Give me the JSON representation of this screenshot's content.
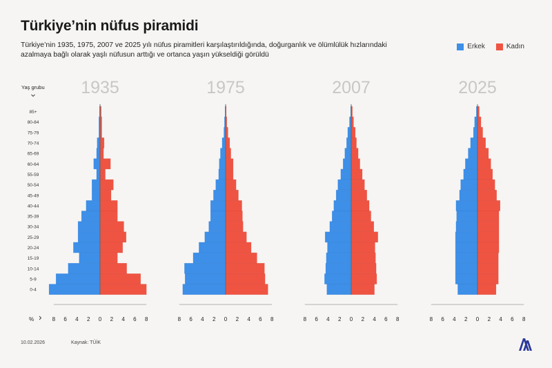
{
  "title": "Türkiye’nin nüfus piramidi",
  "subtitle": "Türkiye’nin 1935, 1975, 2007 ve 2025 yılı nüfus piramitleri karşılaştırıldığında, doğurganlık ve ölümlülük hızlarındaki azalmaya bağlı olarak yaşlı nüfusun arttığı ve ortanca yaşın yükseldiği görüldü",
  "footer": {
    "date": "10.02.2026",
    "source": "Kaynak: TÜİK"
  },
  "colors": {
    "male": "#3d8fe8",
    "female": "#ef5443",
    "background": "#f6f5f3",
    "year": "#c8c7c5"
  },
  "logo_text": "AA",
  "chart_data": {
    "type": "bar",
    "orientation": "population-pyramid",
    "y_axis_label": "Yaş grubu",
    "y_axis_icon": "chevron-down-icon",
    "x_axis_label": "%",
    "x_axis_icon": "chevron-right-icon",
    "x_ticks": [
      "8",
      "6",
      "4",
      "2",
      "0",
      "2",
      "4",
      "6",
      "8"
    ],
    "xlim": [
      -8,
      8
    ],
    "grid": false,
    "legend_position": "top-right",
    "categories": [
      "85+",
      "80-84",
      "75-79",
      "70-74",
      "65-69",
      "60-64",
      "55-59",
      "50-54",
      "45-49",
      "40-44",
      "35-39",
      "30-34",
      "25-29",
      "20-24",
      "15-19",
      "10-14",
      "5-9",
      "0-4"
    ],
    "legend": [
      {
        "key": "male",
        "label": "Erkek",
        "color": "#3d8fe8"
      },
      {
        "key": "female",
        "label": "Kadın",
        "color": "#ef5443"
      }
    ],
    "charts": [
      {
        "year": "1935",
        "male": [
          0.1,
          0.2,
          0.2,
          0.5,
          0.6,
          1.1,
          0.6,
          1.4,
          1.4,
          2.4,
          3.2,
          3.8,
          3.8,
          4.6,
          3.6,
          5.5,
          7.6,
          8.8
        ],
        "female": [
          0.2,
          0.3,
          0.3,
          0.7,
          0.6,
          1.8,
          0.9,
          2.3,
          1.9,
          3.0,
          3.0,
          4.1,
          4.5,
          3.9,
          3.0,
          4.6,
          7.0,
          8.0
        ]
      },
      {
        "year": "1975",
        "male": [
          0.1,
          0.2,
          0.3,
          0.6,
          0.9,
          1.1,
          1.2,
          1.7,
          2.1,
          2.6,
          2.6,
          2.9,
          3.6,
          4.6,
          5.6,
          7.1,
          7.0,
          7.4
        ],
        "female": [
          0.1,
          0.2,
          0.4,
          0.7,
          0.9,
          1.3,
          1.3,
          1.8,
          2.2,
          2.8,
          2.9,
          3.0,
          3.6,
          4.4,
          5.4,
          6.7,
          6.8,
          7.3
        ]
      },
      {
        "year": "2007",
        "male": [
          0.1,
          0.3,
          0.6,
          0.8,
          1.1,
          1.4,
          1.8,
          2.3,
          2.6,
          3.0,
          3.3,
          3.7,
          4.5,
          4.1,
          4.3,
          4.4,
          4.6,
          4.2
        ],
        "female": [
          0.2,
          0.4,
          0.7,
          0.9,
          1.2,
          1.5,
          1.9,
          2.3,
          2.7,
          3.1,
          3.4,
          3.9,
          4.6,
          4.1,
          4.2,
          4.3,
          4.4,
          4.0
        ]
      },
      {
        "year": "2025",
        "male": [
          0.2,
          0.5,
          0.7,
          1.2,
          1.6,
          2.1,
          2.4,
          2.9,
          3.1,
          3.7,
          3.6,
          3.7,
          3.8,
          3.8,
          3.8,
          3.8,
          3.8,
          3.4
        ],
        "female": [
          0.3,
          0.6,
          0.9,
          1.4,
          1.9,
          2.3,
          2.6,
          3.0,
          3.3,
          3.9,
          3.7,
          3.7,
          3.7,
          3.7,
          3.6,
          3.6,
          3.6,
          3.2
        ]
      }
    ]
  }
}
